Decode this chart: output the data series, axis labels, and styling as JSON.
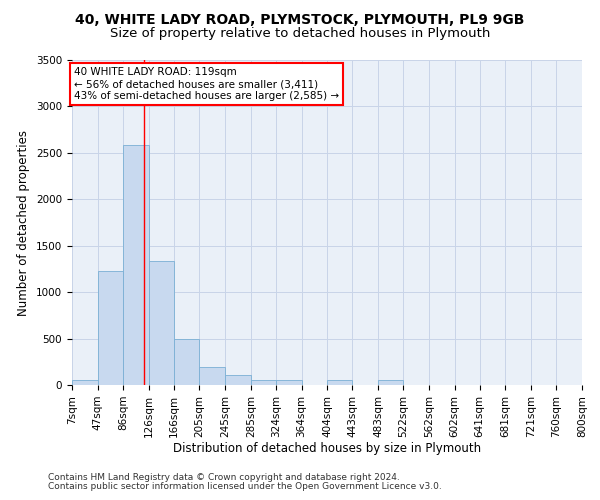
{
  "title_line1": "40, WHITE LADY ROAD, PLYMSTOCK, PLYMOUTH, PL9 9GB",
  "title_line2": "Size of property relative to detached houses in Plymouth",
  "xlabel": "Distribution of detached houses by size in Plymouth",
  "ylabel": "Number of detached properties",
  "bar_color": "#c8d9ef",
  "bar_edge_color": "#7aafd4",
  "grid_color": "#c8d4e8",
  "background_color": "#eaf0f8",
  "bins": [
    "7sqm",
    "47sqm",
    "86sqm",
    "126sqm",
    "166sqm",
    "205sqm",
    "245sqm",
    "285sqm",
    "324sqm",
    "364sqm",
    "404sqm",
    "443sqm",
    "483sqm",
    "522sqm",
    "562sqm",
    "602sqm",
    "641sqm",
    "681sqm",
    "721sqm",
    "760sqm",
    "800sqm"
  ],
  "bin_edges": [
    7,
    47,
    86,
    126,
    166,
    205,
    245,
    285,
    324,
    364,
    404,
    443,
    483,
    522,
    562,
    602,
    641,
    681,
    721,
    760,
    800
  ],
  "bar_heights": [
    55,
    1230,
    2590,
    1340,
    495,
    195,
    110,
    50,
    50,
    0,
    50,
    0,
    50,
    0,
    0,
    0,
    0,
    0,
    0,
    0
  ],
  "ylim": [
    0,
    3500
  ],
  "yticks": [
    0,
    500,
    1000,
    1500,
    2000,
    2500,
    3000,
    3500
  ],
  "vline_x": 119,
  "annotation_line1": "40 WHITE LADY ROAD: 119sqm",
  "annotation_line2": "← 56% of detached houses are smaller (3,411)",
  "annotation_line3": "43% of semi-detached houses are larger (2,585) →",
  "annotation_box_color": "white",
  "annotation_box_edge": "red",
  "vline_color": "red",
  "footer_line1": "Contains HM Land Registry data © Crown copyright and database right 2024.",
  "footer_line2": "Contains public sector information licensed under the Open Government Licence v3.0.",
  "title_fontsize": 10,
  "subtitle_fontsize": 9.5,
  "axis_label_fontsize": 8.5,
  "tick_fontsize": 7.5,
  "annotation_fontsize": 7.5,
  "footer_fontsize": 6.5
}
